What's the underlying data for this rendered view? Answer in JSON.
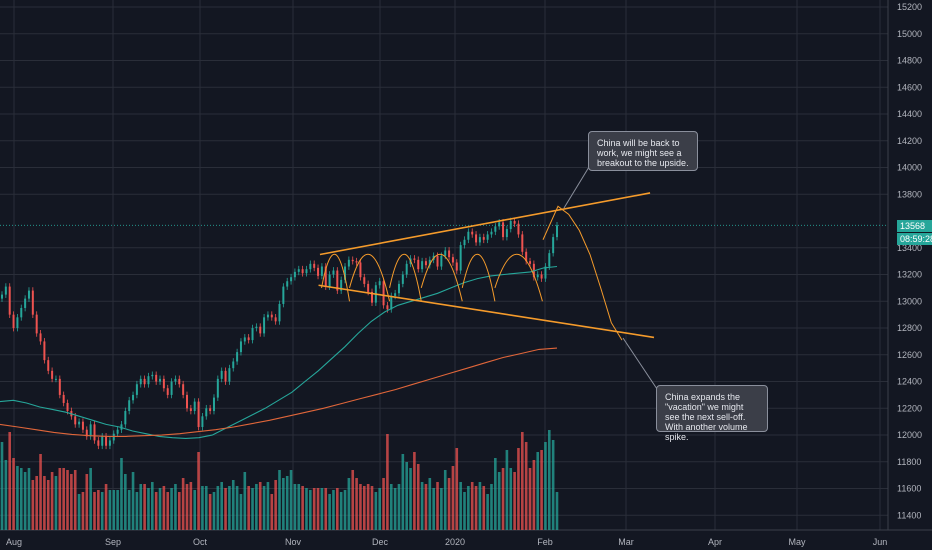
{
  "chart_data": {
    "type": "candlestick",
    "y_ticks": [
      11400,
      11600,
      11800,
      12000,
      12200,
      12400,
      12600,
      12800,
      13000,
      13200,
      13400,
      13800,
      14000,
      14200,
      14400,
      14600,
      14800,
      15000,
      15200
    ],
    "x_ticks": [
      "Aug",
      "Sep",
      "Oct",
      "Nov",
      "Dec",
      "2020",
      "Feb",
      "Mar",
      "Apr",
      "May",
      "Jun"
    ],
    "ylim": [
      11350,
      15230
    ],
    "grid": true,
    "last_price_label": "13568",
    "countdown_label": "08:59:28",
    "price": [
      13050,
      13110,
      12900,
      12800,
      12880,
      12950,
      13020,
      13080,
      12900,
      12760,
      12700,
      12560,
      12480,
      12420,
      12420,
      12300,
      12240,
      12180,
      12140,
      12080,
      12100,
      12040,
      11990,
      12080,
      11960,
      11920,
      11990,
      11920,
      11960,
      12010,
      12040,
      12080,
      12180,
      12260,
      12300,
      12380,
      12420,
      12380,
      12440,
      12450,
      12400,
      12420,
      12350,
      12300,
      12400,
      12420,
      12380,
      12300,
      12200,
      12180,
      12250,
      12060,
      12140,
      12200,
      12180,
      12280,
      12420,
      12480,
      12400,
      12500,
      12550,
      12620,
      12700,
      12730,
      12710,
      12800,
      12810,
      12760,
      12880,
      12900,
      12880,
      12850,
      12980,
      13110,
      13150,
      13180,
      13220,
      13240,
      13210,
      13240,
      13280,
      13250,
      13190,
      13260,
      13110,
      13200,
      13230,
      13080,
      13160,
      13260,
      13310,
      13300,
      13290,
      13180,
      13130,
      13070,
      12990,
      13120,
      13150,
      12970,
      12940,
      13040,
      13060,
      13130,
      13200,
      13280,
      13320,
      13310,
      13240,
      13300,
      13270,
      13310,
      13340,
      13260,
      13340,
      13380,
      13330,
      13290,
      13230,
      13420,
      13460,
      13520,
      13500,
      13440,
      13480,
      13460,
      13500,
      13520,
      13560,
      13590,
      13480,
      13540,
      13600,
      13580,
      13500,
      13370,
      13300,
      13280,
      13180,
      13200,
      13170,
      13260,
      13360,
      13480,
      13568
    ],
    "volume": [
      44,
      35,
      49,
      36,
      32,
      31,
      29,
      31,
      25,
      27,
      38,
      27,
      25,
      29,
      27,
      31,
      31,
      30,
      28,
      30,
      18,
      19,
      28,
      31,
      19,
      20,
      19,
      23,
      20,
      20,
      20,
      36,
      28,
      20,
      29,
      19,
      23,
      23,
      21,
      24,
      19,
      21,
      22,
      19,
      21,
      23,
      19,
      26,
      23,
      24,
      20,
      39,
      22,
      22,
      18,
      19,
      22,
      24,
      21,
      22,
      25,
      22,
      18,
      29,
      22,
      21,
      23,
      24,
      22,
      24,
      18,
      25,
      30,
      26,
      27,
      30,
      23,
      23,
      22,
      21,
      20,
      21,
      21,
      21,
      21,
      18,
      20,
      21,
      19,
      20,
      26,
      30,
      26,
      23,
      22,
      23,
      22,
      19,
      21,
      26,
      48,
      23,
      21,
      23,
      38,
      34,
      31,
      39,
      33,
      24,
      23,
      26,
      21,
      24,
      21,
      30,
      26,
      32,
      41,
      24,
      19,
      22,
      24,
      22,
      24,
      22,
      18,
      23,
      36,
      29,
      31,
      40,
      31,
      29,
      41,
      49,
      44,
      31,
      35,
      39,
      40,
      44,
      50,
      45,
      19
    ],
    "series": [
      {
        "values": [
          12250,
          12260,
          12240,
          12210,
          12190,
          12170,
          12140,
          12110,
          12080,
          12060,
          12030,
          12010,
          11990,
          11980,
          11975,
          11980,
          12000,
          12050,
          12100,
          12150,
          12200,
          12260,
          12320,
          12400,
          12480,
          12570,
          12660,
          12760,
          12850,
          12920,
          12970,
          13000,
          13030,
          13060,
          13100,
          13140,
          13170,
          13190,
          13200,
          13210,
          13220,
          13250,
          13260
        ]
      },
      {
        "values": [
          12080,
          12060,
          12040,
          12020,
          12005,
          11995,
          11990,
          11990,
          11995,
          12000,
          12010,
          12025,
          12040,
          12060,
          12085,
          12110,
          12140,
          12170,
          12200,
          12235,
          12270,
          12305,
          12340,
          12380,
          12420,
          12460,
          12500,
          12540,
          12580,
          12610,
          12640,
          12650
        ]
      }
    ],
    "lines": [
      {
        "x1": 0.3433,
        "y1": 13350,
        "x2": 0.6975,
        "y2": 13810
      },
      {
        "x1": 0.3418,
        "y1": 13120,
        "x2": 0.7017,
        "y2": 12730
      }
    ],
    "projection": [
      13710,
      13650,
      13530,
      13350,
      13100,
      12840,
      12710
    ],
    "arcs": [
      [
        0.345,
        0.375
      ],
      [
        0.375,
        0.418
      ],
      [
        0.418,
        0.452
      ],
      [
        0.452,
        0.496
      ],
      [
        0.496,
        0.531
      ],
      [
        0.531,
        0.582
      ]
    ]
  },
  "annotations": {
    "callout_1": "China will be back to work, we might see a breakout to the upside.",
    "callout_2": "China expands the \"vacation\" we might see the next sell-off. With another volume spike."
  },
  "colors": {
    "background": "#131722",
    "up": "#26a69a",
    "down": "#ef5350",
    "ma_fast": "#26a69a",
    "ma_slow": "#e0663a",
    "trendline": "#f59b2b"
  }
}
